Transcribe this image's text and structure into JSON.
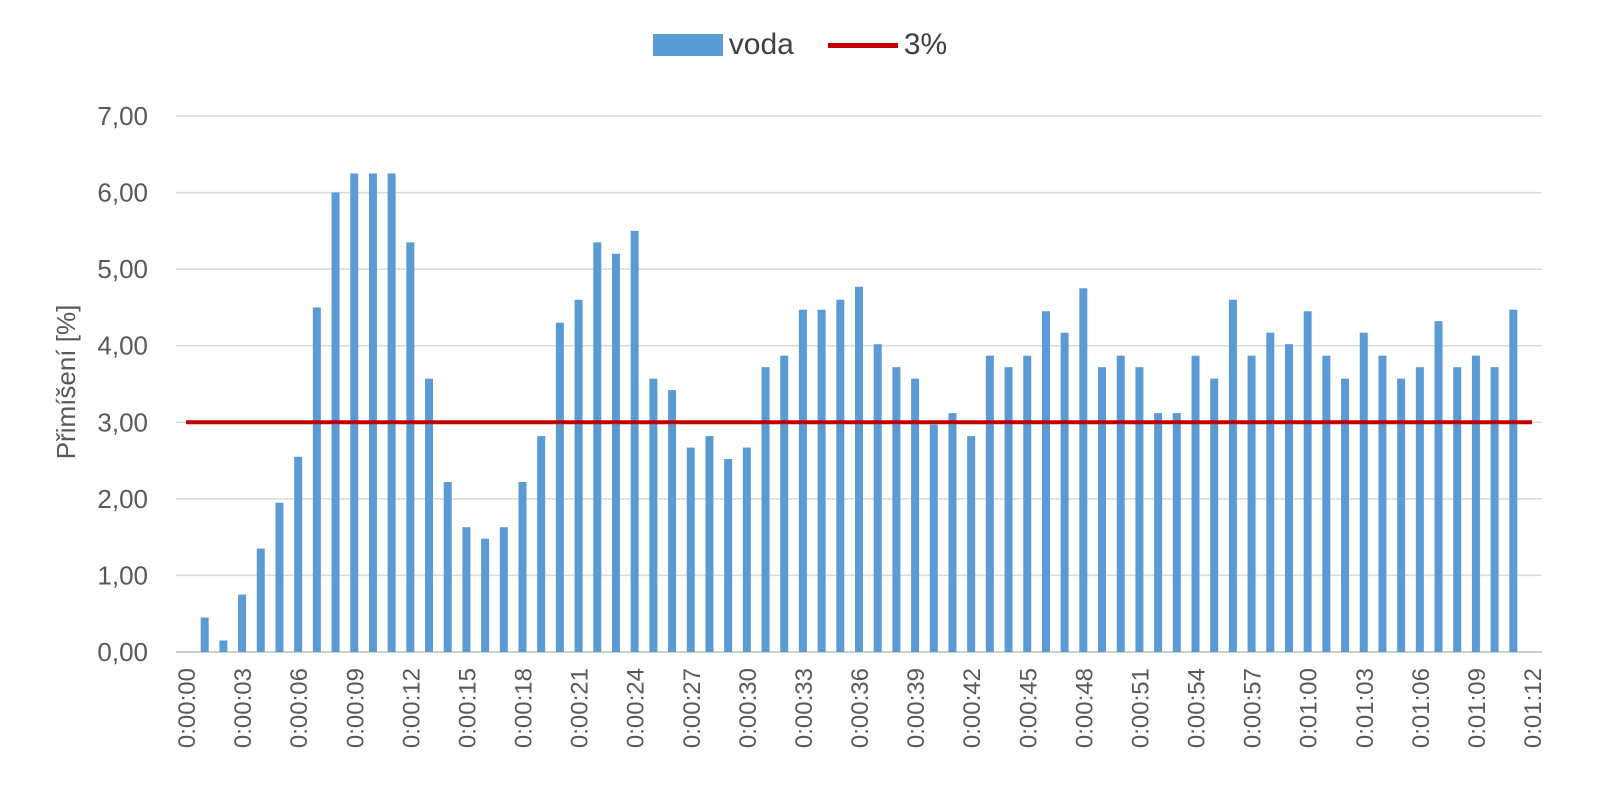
{
  "chart_data": {
    "type": "bar",
    "title": "",
    "ylabel": "Přimíšení [%]",
    "xlabel": "",
    "ylim": [
      0,
      7
    ],
    "y_ticks": [
      "0,00",
      "1,00",
      "2,00",
      "3,00",
      "4,00",
      "5,00",
      "6,00",
      "7,00"
    ],
    "grid": true,
    "legend_position": "top-center",
    "categories": [
      "0:00:00",
      "0:00:01",
      "0:00:02",
      "0:00:03",
      "0:00:04",
      "0:00:05",
      "0:00:06",
      "0:00:07",
      "0:00:08",
      "0:00:09",
      "0:00:10",
      "0:00:11",
      "0:00:12",
      "0:00:13",
      "0:00:14",
      "0:00:15",
      "0:00:16",
      "0:00:17",
      "0:00:18",
      "0:00:19",
      "0:00:20",
      "0:00:21",
      "0:00:22",
      "0:00:23",
      "0:00:24",
      "0:00:25",
      "0:00:26",
      "0:00:27",
      "0:00:28",
      "0:00:29",
      "0:00:30",
      "0:00:31",
      "0:00:32",
      "0:00:33",
      "0:00:34",
      "0:00:35",
      "0:00:36",
      "0:00:37",
      "0:00:38",
      "0:00:39",
      "0:00:40",
      "0:00:41",
      "0:00:42",
      "0:00:43",
      "0:00:44",
      "0:00:45",
      "0:00:46",
      "0:00:47",
      "0:00:48",
      "0:00:49",
      "0:00:50",
      "0:00:51",
      "0:00:52",
      "0:00:53",
      "0:00:54",
      "0:00:55",
      "0:00:56",
      "0:00:57",
      "0:00:58",
      "0:00:59",
      "0:01:00",
      "0:01:01",
      "0:01:02",
      "0:01:03",
      "0:01:04",
      "0:01:05",
      "0:01:06",
      "0:01:07",
      "0:01:08",
      "0:01:09",
      "0:01:10",
      "0:01:11",
      "0:01:12"
    ],
    "x_tick_labels": [
      "0:00:00",
      "0:00:03",
      "0:00:06",
      "0:00:09",
      "0:00:12",
      "0:00:15",
      "0:00:18",
      "0:00:21",
      "0:00:24",
      "0:00:27",
      "0:00:30",
      "0:00:33",
      "0:00:36",
      "0:00:39",
      "0:00:42",
      "0:00:45",
      "0:00:48",
      "0:00:51",
      "0:00:54",
      "0:00:57",
      "0:01:00",
      "0:01:03",
      "0:01:06",
      "0:01:09",
      "0:01:12"
    ],
    "series": [
      {
        "name": "voda",
        "kind": "bar",
        "color": "#5B9BD5",
        "values": [
          null,
          0.45,
          0.15,
          0.75,
          1.35,
          1.95,
          2.55,
          4.5,
          6.0,
          6.25,
          6.25,
          6.25,
          5.35,
          3.57,
          2.22,
          1.63,
          1.48,
          1.63,
          2.22,
          2.82,
          4.3,
          4.6,
          5.35,
          5.2,
          5.5,
          3.57,
          3.42,
          2.67,
          2.82,
          2.52,
          2.67,
          3.72,
          3.87,
          4.47,
          4.47,
          4.6,
          4.77,
          4.02,
          3.72,
          3.57,
          2.97,
          3.12,
          2.82,
          3.87,
          3.72,
          3.87,
          4.45,
          4.17,
          4.75,
          3.72,
          3.87,
          3.72,
          3.12,
          3.12,
          3.87,
          3.57,
          4.6,
          3.87,
          4.17,
          4.02,
          4.45,
          3.87,
          3.57,
          4.17,
          3.87,
          3.57,
          3.72,
          4.32,
          3.72,
          3.87,
          3.72,
          4.47,
          null
        ]
      },
      {
        "name": "3%",
        "kind": "line",
        "color": "#C00000",
        "value": 3.0
      }
    ]
  }
}
